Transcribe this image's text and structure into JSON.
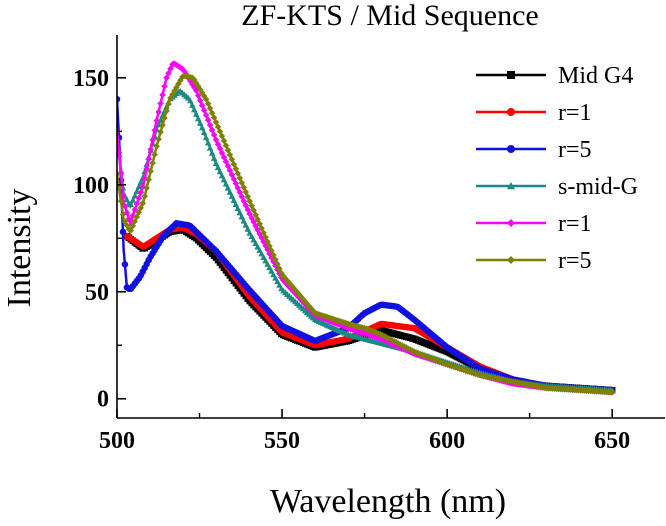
{
  "chart_data": {
    "type": "line",
    "title": "ZF-KTS / Mid Sequence",
    "xlabel": "Wavelength (nm)",
    "ylabel": "Intensity",
    "xlim": [
      500,
      666
    ],
    "ylim": [
      -9,
      170
    ],
    "x_ticks": [
      500,
      550,
      600,
      650
    ],
    "y_ticks": [
      0,
      50,
      100,
      150
    ],
    "legend_position": "top-right",
    "series": [
      {
        "name": "Mid G4",
        "color": "#000000",
        "marker": "square",
        "points": [
          [
            503,
            76
          ],
          [
            508,
            70
          ],
          [
            512,
            74
          ],
          [
            516,
            78
          ],
          [
            520,
            79
          ],
          [
            524,
            75
          ],
          [
            530,
            66
          ],
          [
            540,
            46
          ],
          [
            550,
            30
          ],
          [
            560,
            24
          ],
          [
            570,
            27
          ],
          [
            580,
            32
          ],
          [
            590,
            28
          ],
          [
            600,
            22
          ],
          [
            610,
            14
          ],
          [
            620,
            8
          ],
          [
            630,
            6
          ],
          [
            650,
            4
          ]
        ]
      },
      {
        "name": "r=1",
        "color": "#ff0000",
        "marker": "circle",
        "points": [
          [
            503,
            76
          ],
          [
            508,
            71
          ],
          [
            512,
            75
          ],
          [
            516,
            79
          ],
          [
            520,
            80
          ],
          [
            524,
            77
          ],
          [
            530,
            69
          ],
          [
            540,
            48
          ],
          [
            550,
            31
          ],
          [
            560,
            25
          ],
          [
            570,
            28
          ],
          [
            580,
            35
          ],
          [
            590,
            33
          ],
          [
            600,
            24
          ],
          [
            610,
            15
          ],
          [
            620,
            9
          ],
          [
            630,
            6
          ],
          [
            650,
            4
          ]
        ]
      },
      {
        "name": "r=5",
        "color": "#1010e0",
        "marker": "circle",
        "points": [
          [
            500,
            140
          ],
          [
            501,
            110
          ],
          [
            502,
            70
          ],
          [
            503,
            52
          ],
          [
            504,
            51
          ],
          [
            507,
            57
          ],
          [
            510,
            66
          ],
          [
            514,
            76
          ],
          [
            518,
            82
          ],
          [
            522,
            81
          ],
          [
            526,
            75
          ],
          [
            530,
            69
          ],
          [
            540,
            51
          ],
          [
            550,
            34
          ],
          [
            560,
            27
          ],
          [
            570,
            33
          ],
          [
            575,
            40
          ],
          [
            580,
            44
          ],
          [
            585,
            43
          ],
          [
            590,
            37
          ],
          [
            600,
            24
          ],
          [
            610,
            14
          ],
          [
            620,
            9
          ],
          [
            630,
            6
          ],
          [
            650,
            4
          ]
        ]
      },
      {
        "name": "s-mid-G",
        "color": "#1a8a82",
        "marker": "triangle",
        "points": [
          [
            500,
            122
          ],
          [
            502,
            96
          ],
          [
            504,
            90
          ],
          [
            508,
            104
          ],
          [
            512,
            126
          ],
          [
            516,
            140
          ],
          [
            519,
            144
          ],
          [
            522,
            140
          ],
          [
            526,
            126
          ],
          [
            530,
            110
          ],
          [
            540,
            78
          ],
          [
            550,
            51
          ],
          [
            560,
            37
          ],
          [
            570,
            30
          ],
          [
            580,
            26
          ],
          [
            590,
            22
          ],
          [
            600,
            17
          ],
          [
            610,
            12
          ],
          [
            620,
            8
          ],
          [
            630,
            6
          ],
          [
            650,
            4
          ]
        ]
      },
      {
        "name": "r=1",
        "color": "#ff00ff",
        "marker": "diamond",
        "points": [
          [
            500,
            125
          ],
          [
            502,
            92
          ],
          [
            504,
            82
          ],
          [
            508,
            100
          ],
          [
            512,
            130
          ],
          [
            515,
            150
          ],
          [
            517,
            157
          ],
          [
            520,
            154
          ],
          [
            524,
            144
          ],
          [
            530,
            121
          ],
          [
            540,
            87
          ],
          [
            550,
            56
          ],
          [
            560,
            39
          ],
          [
            570,
            33
          ],
          [
            580,
            28
          ],
          [
            590,
            21
          ],
          [
            600,
            16
          ],
          [
            610,
            11
          ],
          [
            620,
            7
          ],
          [
            630,
            5
          ],
          [
            650,
            3
          ]
        ]
      },
      {
        "name": "r=5",
        "color": "#808000",
        "marker": "diamond",
        "points": [
          [
            500,
            105
          ],
          [
            502,
            84
          ],
          [
            504,
            78
          ],
          [
            508,
            92
          ],
          [
            512,
            118
          ],
          [
            516,
            140
          ],
          [
            520,
            151
          ],
          [
            523,
            150
          ],
          [
            527,
            140
          ],
          [
            532,
            122
          ],
          [
            540,
            93
          ],
          [
            550,
            58
          ],
          [
            560,
            40
          ],
          [
            570,
            35
          ],
          [
            575,
            33
          ],
          [
            580,
            30
          ],
          [
            590,
            22
          ],
          [
            600,
            16
          ],
          [
            610,
            11
          ],
          [
            620,
            8
          ],
          [
            630,
            5
          ],
          [
            650,
            3
          ]
        ]
      }
    ]
  }
}
